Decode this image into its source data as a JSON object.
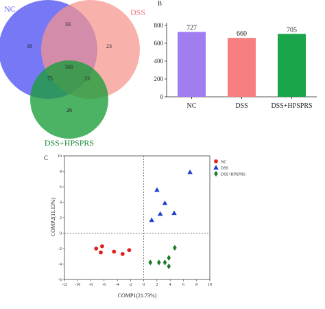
{
  "panels": {
    "b": "B",
    "c": "C"
  },
  "venn": {
    "sets": [
      {
        "name": "NC",
        "color": "#6a6cf5"
      },
      {
        "name": "DSS",
        "color": "#f7948a"
      },
      {
        "name": "DSS+HPSPRS",
        "color": "#1a9d3a"
      }
    ],
    "regions": {
      "nc_only": "38",
      "dss_only": "23",
      "hps_only": "26",
      "nc_dss": "33",
      "nc_hps": "75",
      "dss_hps": "23",
      "all": "581"
    }
  },
  "chart_data": [
    {
      "type": "bar",
      "panel": "B",
      "categories": [
        "NC",
        "DSS",
        "DSS+HPSPRS"
      ],
      "values": [
        727,
        660,
        705
      ],
      "value_labels": [
        "727",
        "660",
        "705"
      ],
      "colors": [
        "#a07ef0",
        "#f77f7f",
        "#1aa54a"
      ],
      "ylim": [
        0,
        800
      ],
      "yticks": [
        "0",
        "200",
        "400",
        "600",
        "800"
      ],
      "title": "",
      "xlabel": "",
      "ylabel": ""
    },
    {
      "type": "scatter",
      "panel": "C",
      "xlabel": "COMP1(21.73%)",
      "ylabel": "COMP2(11.13%)",
      "xlim": [
        -12,
        10
      ],
      "ylim": [
        -6,
        10
      ],
      "xticks": [
        "-12",
        "-10",
        "-8",
        "-6",
        "-4",
        "-2",
        "0",
        "2",
        "4",
        "6",
        "8",
        "10"
      ],
      "yticks": [
        "-6",
        "-4",
        "-2",
        "0",
        "2",
        "4",
        "6",
        "8",
        "10"
      ],
      "legend_position": "top-right",
      "series": [
        {
          "name": "NC",
          "marker": "circle",
          "color": "#e02020",
          "points": [
            [
              -7.2,
              -2.0
            ],
            [
              -6.5,
              -2.5
            ],
            [
              -6.3,
              -1.7
            ],
            [
              -4.5,
              -2.4
            ],
            [
              -3.2,
              -2.7
            ],
            [
              -2.2,
              -2.2
            ]
          ]
        },
        {
          "name": "DSS",
          "marker": "triangle",
          "color": "#1f3fd0",
          "points": [
            [
              7.0,
              7.9
            ],
            [
              2.0,
              5.6
            ],
            [
              3.2,
              3.9
            ],
            [
              2.5,
              2.5
            ],
            [
              1.2,
              1.7
            ],
            [
              4.6,
              2.6
            ]
          ]
        },
        {
          "name": "DSS+HPSPRS",
          "marker": "diamond",
          "color": "#1b7a2a",
          "points": [
            [
              4.7,
              -1.9
            ],
            [
              1.0,
              -3.8
            ],
            [
              2.3,
              -3.8
            ],
            [
              3.2,
              -3.8
            ],
            [
              3.8,
              -3.2
            ],
            [
              3.8,
              -4.3
            ]
          ]
        }
      ]
    }
  ]
}
